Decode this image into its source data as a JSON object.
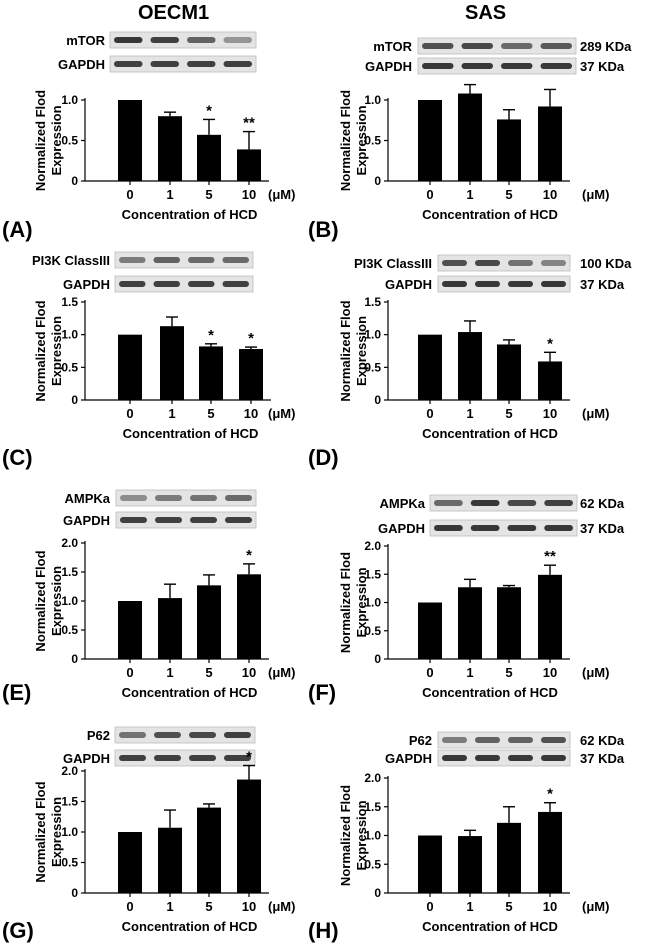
{
  "figure": {
    "column_titles": [
      "OECM1",
      "SAS"
    ]
  },
  "chart_data": [
    {
      "type": "bar",
      "panel_label": "(A)",
      "cell_line": "OECM1",
      "blot_labels": [
        "mTOR",
        "GAPDH"
      ],
      "kda_labels": [],
      "ylabel": "Normalized Flod Expression",
      "xlabel": "Concentration of HCD",
      "unit": "(μM)",
      "categories": [
        "0",
        "1",
        "5",
        "10"
      ],
      "values": [
        1.0,
        0.8,
        0.57,
        0.39
      ],
      "errors": [
        0.0,
        0.05,
        0.19,
        0.22
      ],
      "significance": [
        "",
        "",
        "*",
        "**"
      ],
      "ylim": [
        0,
        1.0
      ],
      "yticks": [
        0.0,
        0.5,
        1.0
      ],
      "ytick_labels": [
        "0",
        "0.5",
        "1.0"
      ]
    },
    {
      "type": "bar",
      "panel_label": "(B)",
      "cell_line": "SAS",
      "blot_labels": [
        "mTOR",
        "GAPDH"
      ],
      "kda_labels": [
        "289 KDa",
        "37 KDa"
      ],
      "ylabel": "Normalized Flod Expression",
      "xlabel": "Concentration of HCD",
      "unit": "(μM)",
      "categories": [
        "0",
        "1",
        "5",
        "10"
      ],
      "values": [
        1.0,
        1.08,
        0.76,
        0.92
      ],
      "errors": [
        0.0,
        0.11,
        0.12,
        0.21
      ],
      "significance": [
        "",
        "",
        "",
        ""
      ],
      "ylim": [
        0,
        1.0
      ],
      "yticks": [
        0.0,
        0.5,
        1.0
      ],
      "ytick_labels": [
        "0",
        "0.5",
        "1.0"
      ]
    },
    {
      "type": "bar",
      "panel_label": "(C)",
      "cell_line": "OECM1",
      "blot_labels": [
        "PI3K ClassIII",
        "GAPDH"
      ],
      "kda_labels": [],
      "ylabel": "Normalized Flod Expression",
      "xlabel": "Concentration of HCD",
      "unit": "(μM)",
      "categories": [
        "0",
        "1",
        "5",
        "10"
      ],
      "values": [
        1.0,
        1.13,
        0.82,
        0.78
      ],
      "errors": [
        0.0,
        0.14,
        0.04,
        0.03
      ],
      "significance": [
        "",
        "",
        "*",
        "*"
      ],
      "ylim": [
        0,
        1.5
      ],
      "yticks": [
        0.0,
        0.5,
        1.0,
        1.5
      ],
      "ytick_labels": [
        "0",
        "0.5",
        "1.0",
        "1.5"
      ]
    },
    {
      "type": "bar",
      "panel_label": "(D)",
      "cell_line": "SAS",
      "blot_labels": [
        "PI3K ClassIII",
        "GAPDH"
      ],
      "kda_labels": [
        "100 KDa",
        "37 KDa"
      ],
      "ylabel": "Normalized Flod Expression",
      "xlabel": "Concentration of HCD",
      "unit": "(μM)",
      "categories": [
        "0",
        "1",
        "5",
        "10"
      ],
      "values": [
        1.0,
        1.04,
        0.85,
        0.59
      ],
      "errors": [
        0.0,
        0.17,
        0.07,
        0.14
      ],
      "significance": [
        "",
        "",
        "",
        "*"
      ],
      "ylim": [
        0,
        1.5
      ],
      "yticks": [
        0.0,
        0.5,
        1.0,
        1.5
      ],
      "ytick_labels": [
        "0",
        "0.5",
        "1.0",
        "1.5"
      ]
    },
    {
      "type": "bar",
      "panel_label": "(E)",
      "cell_line": "OECM1",
      "blot_labels": [
        "AMPKa",
        "GAPDH"
      ],
      "kda_labels": [],
      "ylabel": "Normalized Flod Expression",
      "xlabel": "Concentration of HCD",
      "unit": "(μM)",
      "categories": [
        "0",
        "1",
        "5",
        "10"
      ],
      "values": [
        1.0,
        1.05,
        1.27,
        1.46
      ],
      "errors": [
        0.0,
        0.24,
        0.18,
        0.18
      ],
      "significance": [
        "",
        "",
        "",
        "*"
      ],
      "ylim": [
        0,
        2.0
      ],
      "yticks": [
        0.0,
        0.5,
        1.0,
        1.5,
        2.0
      ],
      "ytick_labels": [
        "0",
        "0.5",
        "1.0",
        "1.5",
        "2.0"
      ]
    },
    {
      "type": "bar",
      "panel_label": "(F)",
      "cell_line": "SAS",
      "blot_labels": [
        "AMPKa",
        "GAPDH"
      ],
      "kda_labels": [
        "62 KDa",
        "37 KDa"
      ],
      "ylabel": "Normalized Flod Expression",
      "xlabel": "Concentration of HCD",
      "unit": "(μM)",
      "categories": [
        "0",
        "1",
        "5",
        "10"
      ],
      "values": [
        1.0,
        1.27,
        1.27,
        1.49
      ],
      "errors": [
        0.0,
        0.14,
        0.03,
        0.17
      ],
      "significance": [
        "",
        "",
        "",
        "**"
      ],
      "ylim": [
        0,
        2.0
      ],
      "yticks": [
        0.0,
        0.5,
        1.0,
        1.5,
        2.0
      ],
      "ytick_labels": [
        "0",
        "0.5",
        "1.0",
        "1.5",
        "2.0"
      ]
    },
    {
      "type": "bar",
      "panel_label": "(G)",
      "cell_line": "OECM1",
      "blot_labels": [
        "P62",
        "GAPDH"
      ],
      "kda_labels": [],
      "ylabel": "Normalized Flod Expression",
      "xlabel": "Concentration of HCD",
      "unit": "(μM)",
      "categories": [
        "0",
        "1",
        "5",
        "10"
      ],
      "values": [
        1.0,
        1.07,
        1.4,
        1.86
      ],
      "errors": [
        0.0,
        0.29,
        0.06,
        0.23
      ],
      "significance": [
        "",
        "",
        "",
        "*"
      ],
      "ylim": [
        0,
        2.0
      ],
      "yticks": [
        0.0,
        0.5,
        1.0,
        1.5,
        2.0
      ],
      "ytick_labels": [
        "0",
        "0.5",
        "1.0",
        "1.5",
        "2.0"
      ]
    },
    {
      "type": "bar",
      "panel_label": "(H)",
      "cell_line": "SAS",
      "blot_labels": [
        "P62",
        "GAPDH"
      ],
      "kda_labels": [
        "62 KDa",
        "37 KDa"
      ],
      "ylabel": "Normalized Flod Expression",
      "xlabel": "Concentration of HCD",
      "unit": "(μM)",
      "categories": [
        "0",
        "1",
        "5",
        "10"
      ],
      "values": [
        1.0,
        0.99,
        1.22,
        1.41
      ],
      "errors": [
        0.0,
        0.1,
        0.28,
        0.16
      ],
      "significance": [
        "",
        "",
        "",
        "*"
      ],
      "ylim": [
        0,
        2.0
      ],
      "yticks": [
        0.0,
        0.5,
        1.0,
        1.5,
        2.0
      ],
      "ytick_labels": [
        "0",
        "0.5",
        "1.0",
        "1.5",
        "2.0"
      ]
    }
  ]
}
